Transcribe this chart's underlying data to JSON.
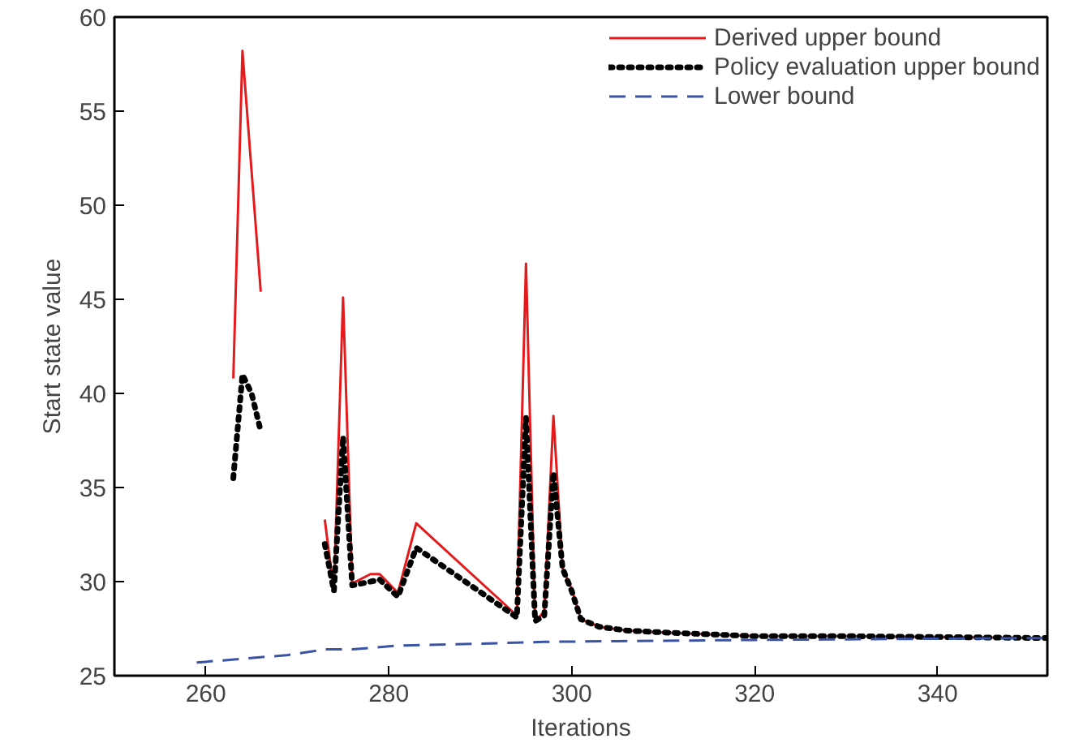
{
  "chart_data": {
    "type": "line",
    "xlabel": "Iterations",
    "ylabel": "Start state value",
    "xlim": [
      250,
      352
    ],
    "ylim": [
      25,
      60
    ],
    "xticks": [
      260,
      280,
      300,
      320,
      340
    ],
    "yticks": [
      25,
      30,
      35,
      40,
      45,
      50,
      55,
      60
    ],
    "grid": false,
    "legend": "top right",
    "series": [
      {
        "name": "Derived upper bound",
        "color": "#e41a1c",
        "line_style": "solid",
        "x": [
          263,
          264,
          265,
          266,
          270,
          273,
          274,
          275,
          276,
          278,
          279,
          281,
          283,
          294,
          295,
          296,
          297,
          298,
          299,
          300,
          301,
          303,
          306,
          310,
          315,
          320,
          330,
          352
        ],
        "values": [
          40.8,
          58.2,
          51.8,
          45.4,
          null,
          33.3,
          29.5,
          45.1,
          29.9,
          30.4,
          30.4,
          29.4,
          33.1,
          28.2,
          46.9,
          27.9,
          28.4,
          38.8,
          30.7,
          29.6,
          28.0,
          27.6,
          27.4,
          27.3,
          27.2,
          27.1,
          27.1,
          27.0
        ]
      },
      {
        "name": "Policy evaluation upper bound",
        "color": "#000000",
        "line_style": "dotted",
        "x": [
          263,
          264,
          265,
          266,
          270,
          273,
          274,
          275,
          276,
          278,
          279,
          281,
          283,
          294,
          295,
          296,
          297,
          298,
          299,
          300,
          301,
          303,
          306,
          310,
          315,
          320,
          330,
          352
        ],
        "values": [
          35.5,
          41.0,
          40.0,
          38.0,
          null,
          32.0,
          29.5,
          37.7,
          29.8,
          30.0,
          30.1,
          29.2,
          31.8,
          28.1,
          38.7,
          27.9,
          28.2,
          35.8,
          30.7,
          29.5,
          28.0,
          27.6,
          27.4,
          27.3,
          27.2,
          27.1,
          27.1,
          27.0
        ]
      },
      {
        "name": "Lower bound",
        "color": "#3a53a4",
        "line_style": "dashed",
        "x": [
          259,
          264,
          269,
          273,
          276,
          281,
          290,
          297,
          320,
          352
        ],
        "values": [
          25.7,
          25.9,
          26.1,
          26.4,
          26.4,
          26.6,
          26.7,
          26.8,
          26.9,
          27.0
        ]
      }
    ]
  }
}
